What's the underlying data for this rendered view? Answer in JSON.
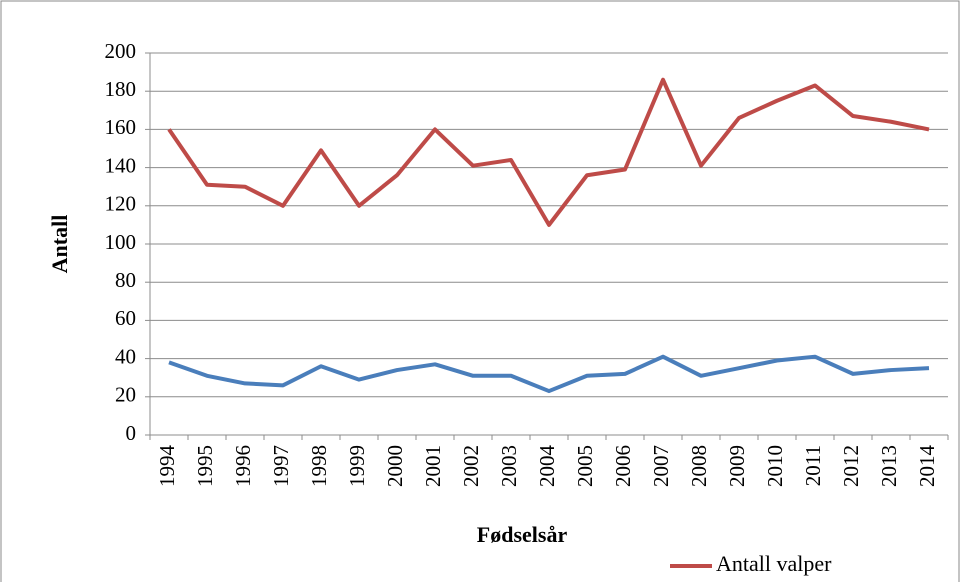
{
  "chart_data": {
    "type": "line",
    "x_label": "Fødselsår",
    "y_label": "Antall",
    "categories": [
      "1994",
      "1995",
      "1996",
      "1997",
      "1998",
      "1999",
      "2000",
      "2001",
      "2002",
      "2003",
      "2004",
      "2005",
      "2006",
      "2007",
      "2008",
      "2009",
      "2010",
      "2011",
      "2012",
      "2013",
      "2014"
    ],
    "series": [
      {
        "name": "Antall valper",
        "color": "#be4b48",
        "values": [
          160,
          131,
          130,
          120,
          149,
          120,
          136,
          160,
          141,
          144,
          110,
          136,
          139,
          186,
          141,
          166,
          175,
          183,
          167,
          164,
          160
        ]
      },
      {
        "color": "#4a7ebb",
        "values": [
          38,
          31,
          27,
          26,
          36,
          29,
          34,
          37,
          31,
          31,
          23,
          31,
          32,
          41,
          31,
          35,
          39,
          41,
          32,
          34,
          35
        ]
      }
    ],
    "ylim": [
      0,
      200
    ],
    "yticks": [
      0,
      20,
      40,
      60,
      80,
      100,
      120,
      140,
      160,
      180,
      200
    ],
    "grid": true,
    "legend": "bottom-right"
  }
}
